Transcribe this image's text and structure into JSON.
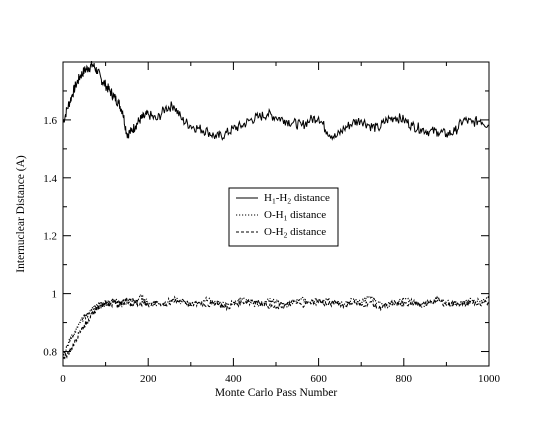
{
  "chart_data": {
    "type": "line",
    "title": "",
    "xlabel": "Monte Carlo Pass Number",
    "ylabel": "Internuclear Distance (A)",
    "xlim": [
      0,
      1000
    ],
    "ylim": [
      0.75,
      1.8
    ],
    "xticks": [
      0,
      200,
      400,
      600,
      800,
      1000
    ],
    "xtick_labels": [
      "0",
      "200",
      "400",
      "600",
      "800",
      "1000"
    ],
    "yticks": [
      0.8,
      1.0,
      1.2,
      1.4,
      1.6
    ],
    "ytick_labels": [
      "0.8",
      "1",
      "1.2",
      "1.4",
      "1.6"
    ],
    "grid": false,
    "legend_position": "center",
    "series": [
      {
        "name": "H1-H2 distance",
        "label_main_1": "H",
        "label_sub_1": "1",
        "label_main_2": "-H",
        "label_sub_2": "2",
        "label_tail": " distance",
        "style": "solid",
        "x": [
          0,
          10,
          20,
          30,
          40,
          50,
          60,
          70,
          80,
          90,
          100,
          110,
          120,
          130,
          140,
          150,
          160,
          170,
          180,
          190,
          200,
          220,
          240,
          260,
          280,
          300,
          320,
          340,
          360,
          380,
          400,
          420,
          440,
          460,
          480,
          500,
          520,
          540,
          560,
          580,
          600,
          620,
          640,
          660,
          680,
          700,
          720,
          740,
          760,
          780,
          800,
          820,
          840,
          860,
          880,
          900,
          920,
          940,
          960,
          980,
          1000
        ],
        "y": [
          1.59,
          1.64,
          1.68,
          1.72,
          1.75,
          1.77,
          1.78,
          1.79,
          1.77,
          1.74,
          1.72,
          1.7,
          1.68,
          1.66,
          1.63,
          1.55,
          1.56,
          1.58,
          1.6,
          1.61,
          1.62,
          1.6,
          1.64,
          1.65,
          1.6,
          1.58,
          1.57,
          1.56,
          1.54,
          1.55,
          1.57,
          1.58,
          1.6,
          1.61,
          1.62,
          1.61,
          1.6,
          1.59,
          1.58,
          1.6,
          1.61,
          1.56,
          1.54,
          1.57,
          1.59,
          1.6,
          1.58,
          1.57,
          1.6,
          1.61,
          1.6,
          1.58,
          1.57,
          1.56,
          1.56,
          1.55,
          1.56,
          1.6,
          1.59,
          1.6,
          1.58
        ]
      },
      {
        "name": "O-H1 distance",
        "label_main_1": "O-H",
        "label_sub_1": "1",
        "label_main_2": "",
        "label_sub_2": "",
        "label_tail": " distance",
        "style": "dotted",
        "x": [
          0,
          10,
          20,
          30,
          40,
          50,
          60,
          70,
          80,
          90,
          100,
          110,
          120,
          130,
          140,
          150,
          160,
          170,
          180,
          190,
          200,
          220,
          240,
          260,
          280,
          300,
          320,
          340,
          360,
          380,
          400,
          420,
          440,
          460,
          480,
          500,
          520,
          540,
          560,
          580,
          600,
          620,
          640,
          660,
          680,
          700,
          720,
          740,
          760,
          780,
          800,
          820,
          840,
          860,
          880,
          900,
          920,
          940,
          960,
          980,
          1000
        ],
        "y": [
          0.79,
          0.82,
          0.85,
          0.87,
          0.9,
          0.92,
          0.93,
          0.95,
          0.96,
          0.97,
          0.96,
          0.97,
          0.98,
          0.97,
          0.96,
          0.97,
          0.98,
          0.97,
          0.99,
          0.98,
          0.97,
          0.96,
          0.97,
          0.98,
          0.97,
          0.96,
          0.97,
          0.98,
          0.97,
          0.96,
          0.97,
          0.98,
          0.97,
          0.96,
          0.98,
          0.97,
          0.96,
          0.97,
          0.98,
          0.97,
          0.97,
          0.98,
          0.97,
          0.96,
          0.98,
          0.97,
          0.99,
          0.97,
          0.96,
          0.97,
          0.98,
          0.97,
          0.96,
          0.97,
          0.98,
          0.97,
          0.96,
          0.97,
          0.98,
          0.97,
          0.98
        ]
      },
      {
        "name": "O-H2 distance",
        "label_main_1": "O-H",
        "label_sub_1": "2",
        "label_main_2": "",
        "label_sub_2": "",
        "label_tail": " distance",
        "style": "dashed",
        "x": [
          0,
          10,
          20,
          30,
          40,
          50,
          60,
          70,
          80,
          90,
          100,
          110,
          120,
          130,
          140,
          150,
          160,
          170,
          180,
          190,
          200,
          220,
          240,
          260,
          280,
          300,
          320,
          340,
          360,
          380,
          400,
          420,
          440,
          460,
          480,
          500,
          520,
          540,
          560,
          580,
          600,
          620,
          640,
          660,
          680,
          700,
          720,
          740,
          760,
          780,
          800,
          820,
          840,
          860,
          880,
          900,
          920,
          940,
          960,
          980,
          1000
        ],
        "y": [
          0.78,
          0.79,
          0.81,
          0.84,
          0.87,
          0.89,
          0.91,
          0.93,
          0.95,
          0.96,
          0.97,
          0.96,
          0.97,
          0.96,
          0.97,
          0.98,
          0.96,
          0.97,
          0.96,
          0.97,
          0.96,
          0.97,
          0.96,
          0.97,
          0.98,
          0.96,
          0.97,
          0.96,
          0.97,
          0.95,
          0.96,
          0.97,
          0.98,
          0.97,
          0.96,
          0.95,
          0.96,
          0.97,
          0.96,
          0.97,
          0.98,
          0.96,
          0.97,
          0.96,
          0.97,
          0.96,
          0.97,
          0.95,
          0.96,
          0.97,
          0.96,
          0.97,
          0.96,
          0.97,
          0.98,
          0.96,
          0.97,
          0.96,
          0.97,
          0.96,
          0.97
        ]
      }
    ]
  },
  "colors": {
    "line": "#000000",
    "background": "#ffffff"
  }
}
